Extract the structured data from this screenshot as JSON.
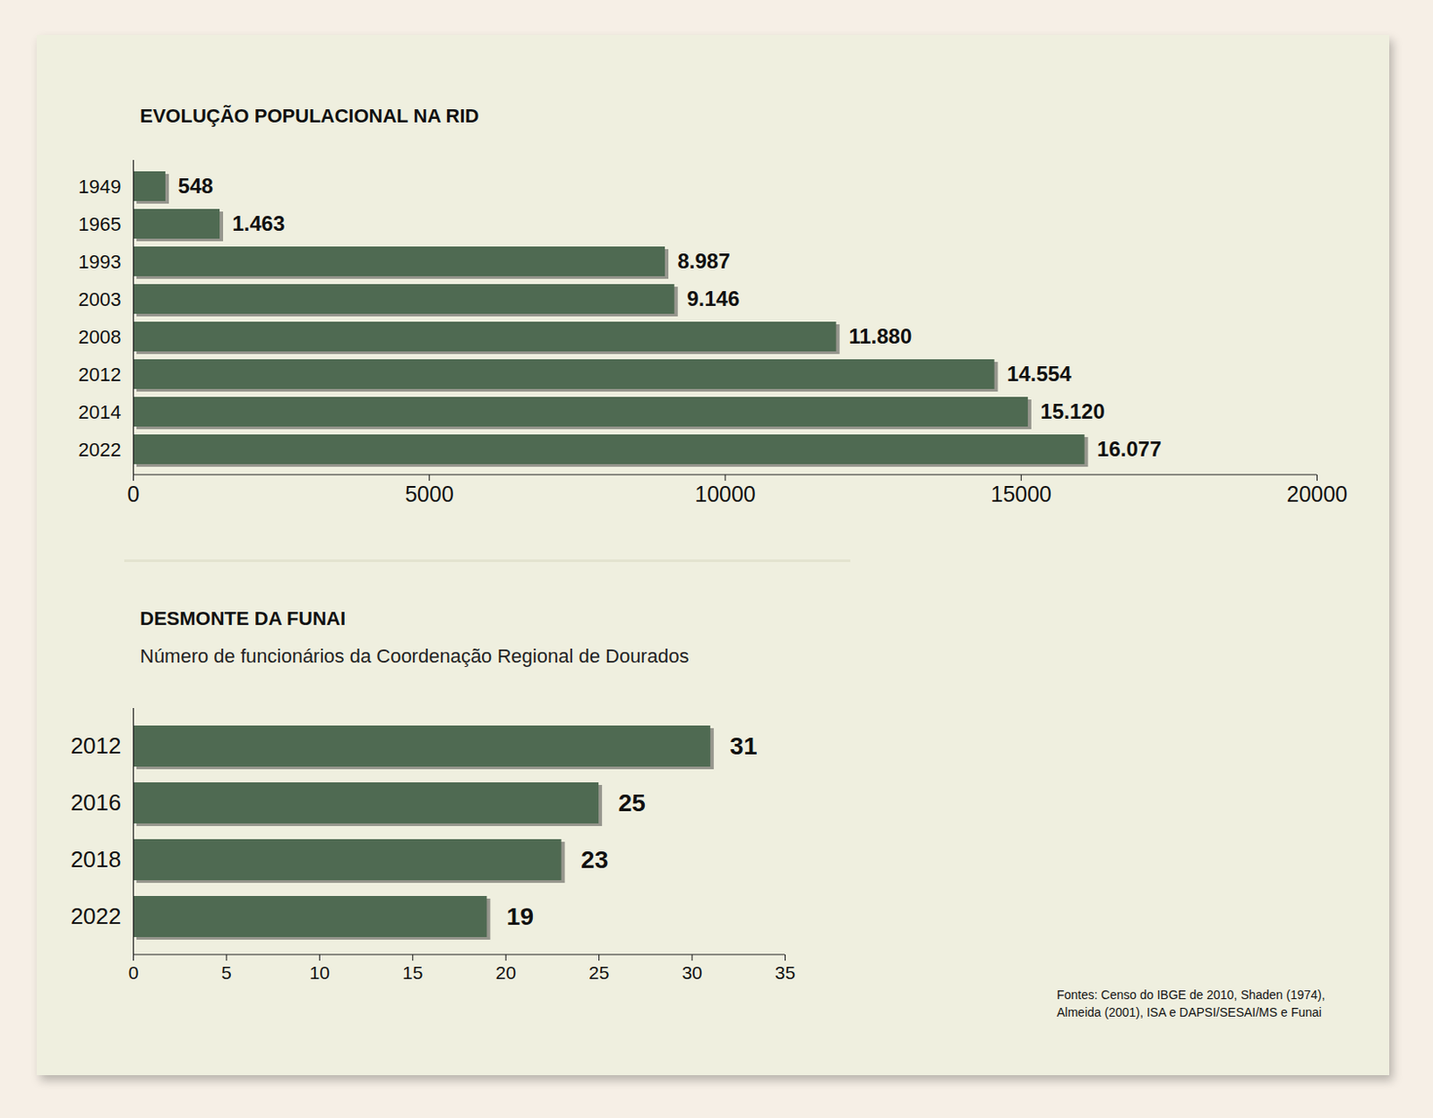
{
  "chart_data": [
    {
      "type": "bar",
      "orientation": "horizontal",
      "data_labels": true,
      "title": "EVOLUÇÃO POPULACIONAL NA RID",
      "categories": [
        "1949",
        "1965",
        "1993",
        "2003",
        "2008",
        "2012",
        "2014",
        "2022"
      ],
      "values": [
        548,
        1463,
        8987,
        9146,
        11880,
        14554,
        15120,
        16077
      ],
      "value_labels": [
        "548",
        "1.463",
        "8.987",
        "9.146",
        "11.880",
        "14.554",
        "15.120",
        "16.077"
      ],
      "color": "#4f6a52",
      "xlim": [
        0,
        20000
      ],
      "xticks": [
        0,
        5000,
        10000,
        15000,
        20000
      ]
    },
    {
      "type": "bar",
      "orientation": "horizontal",
      "data_labels": true,
      "title": "DESMONTE DA FUNAI",
      "subtitle": "Número de funcionários da Coordenação Regional de Dourados",
      "categories": [
        "2012",
        "2016",
        "2018",
        "2022"
      ],
      "values": [
        31,
        25,
        23,
        19
      ],
      "color": "#4f6a52",
      "xlim": [
        0,
        35
      ],
      "xticks": [
        0,
        5,
        10,
        15,
        20,
        25,
        30,
        35
      ]
    }
  ],
  "source": "Fontes: Censo do IBGE de 2010, Shaden (1974), Almeida (2001), ISA e DAPSI/SESAI/MS e Funai"
}
